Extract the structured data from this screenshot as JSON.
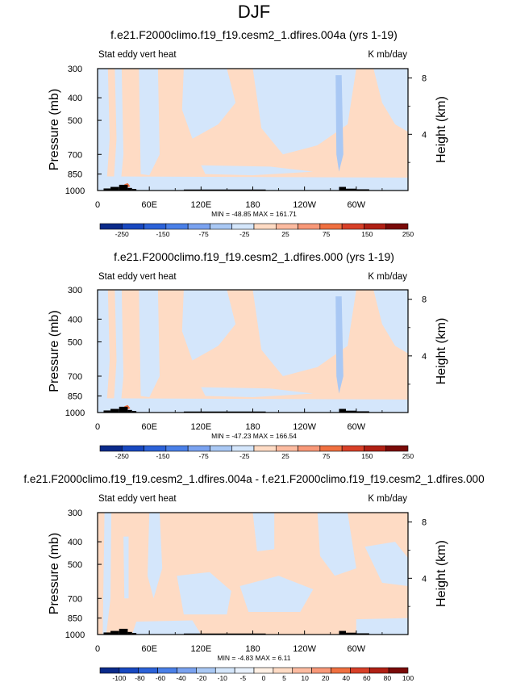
{
  "title": "DJF",
  "colors": {
    "frame": "#000000",
    "topography": "#000000",
    "orange": "#fedbc4",
    "light_blue": "#d4e6fb",
    "mid_blue": "#a9c8f4",
    "orange_hot": "#f07040"
  },
  "chart_data": [
    {
      "type": "heatmap",
      "title": "f.e21.F2000climo.f19_f19.cesm2_1.dfires.004a (yrs 1-19)",
      "left_label": "Stat eddy vert heat",
      "right_label": "K mb/day",
      "ylabel": "Pressure (mb)",
      "ylabel_right": "Height (km)",
      "xlabel": "",
      "x_ticks": [
        "0",
        "60E",
        "120E",
        "180",
        "120W",
        "60W"
      ],
      "x_tick_values": [
        0,
        60,
        120,
        180,
        240,
        300
      ],
      "xlim": [
        0,
        360
      ],
      "y_ticks": [
        "300",
        "400",
        "500",
        "700",
        "850",
        "1000"
      ],
      "y_tick_values": [
        300,
        400,
        500,
        700,
        850,
        1000
      ],
      "ylim": [
        1000,
        300
      ],
      "height_ticks": [
        "8",
        "4"
      ],
      "height_tick_values": [
        8,
        4
      ],
      "stats": "MIN = -48.85   MAX = 161.71",
      "colorbar_labels": [
        "-250",
        "-150",
        "-75",
        "-25",
        "25",
        "75",
        "150",
        "250"
      ],
      "colorbar_colors": [
        "#0a2a8a",
        "#1848c0",
        "#2c62d8",
        "#4a80e8",
        "#7aa2f0",
        "#a9c8f4",
        "#d4e6fb",
        "#fedbc4",
        "#fcbba0",
        "#f89878",
        "#f07040",
        "#d84028",
        "#b02014",
        "#7a0a08"
      ]
    },
    {
      "type": "heatmap",
      "title": "f.e21.F2000climo.f19_f19.cesm2_1.dfires.000 (yrs 1-19)",
      "left_label": "Stat eddy vert heat",
      "right_label": "K mb/day",
      "ylabel": "Pressure (mb)",
      "ylabel_right": "Height (km)",
      "xlabel": "",
      "x_ticks": [
        "0",
        "60E",
        "120E",
        "180",
        "120W",
        "60W"
      ],
      "x_tick_values": [
        0,
        60,
        120,
        180,
        240,
        300
      ],
      "xlim": [
        0,
        360
      ],
      "y_ticks": [
        "300",
        "400",
        "500",
        "700",
        "850",
        "1000"
      ],
      "y_tick_values": [
        300,
        400,
        500,
        700,
        850,
        1000
      ],
      "ylim": [
        1000,
        300
      ],
      "height_ticks": [
        "8",
        "4"
      ],
      "height_tick_values": [
        8,
        4
      ],
      "stats": "MIN = -47.23   MAX = 166.54",
      "colorbar_labels": [
        "-250",
        "-150",
        "-75",
        "-25",
        "25",
        "75",
        "150",
        "250"
      ],
      "colorbar_colors": [
        "#0a2a8a",
        "#1848c0",
        "#2c62d8",
        "#4a80e8",
        "#7aa2f0",
        "#a9c8f4",
        "#d4e6fb",
        "#fedbc4",
        "#fcbba0",
        "#f89878",
        "#f07040",
        "#d84028",
        "#b02014",
        "#7a0a08"
      ]
    },
    {
      "type": "heatmap",
      "title": "f.e21.F2000climo.f19_f19.cesm2_1.dfires.004a - f.e21.F2000climo.f19_f19.cesm2_1.dfires.000",
      "left_label": "Stat eddy vert heat",
      "right_label": "K mb/day",
      "ylabel": "Pressure (mb)",
      "ylabel_right": "Height (km)",
      "xlabel": "",
      "x_ticks": [
        "0",
        "60E",
        "120E",
        "180",
        "120W",
        "60W"
      ],
      "x_tick_values": [
        0,
        60,
        120,
        180,
        240,
        300
      ],
      "xlim": [
        0,
        360
      ],
      "y_ticks": [
        "300",
        "400",
        "500",
        "700",
        "850",
        "1000"
      ],
      "y_tick_values": [
        300,
        400,
        500,
        700,
        850,
        1000
      ],
      "ylim": [
        1000,
        300
      ],
      "height_ticks": [
        "8",
        "4"
      ],
      "height_tick_values": [
        8,
        4
      ],
      "stats": "MIN = -4.83   MAX = 6.11",
      "colorbar_labels": [
        "-100",
        "-80",
        "-60",
        "-40",
        "-20",
        "-10",
        "-5",
        "0",
        "5",
        "10",
        "20",
        "40",
        "60",
        "80",
        "100"
      ],
      "colorbar_colors": [
        "#0a2a8a",
        "#1848c0",
        "#2c62d8",
        "#4a80e8",
        "#7aa2f0",
        "#a9c8f4",
        "#d4e6fb",
        "#e8f1fc",
        "#fff0e4",
        "#fedbc4",
        "#fcbba0",
        "#f89878",
        "#f07040",
        "#d84028",
        "#b02014",
        "#7a0a08"
      ]
    }
  ]
}
